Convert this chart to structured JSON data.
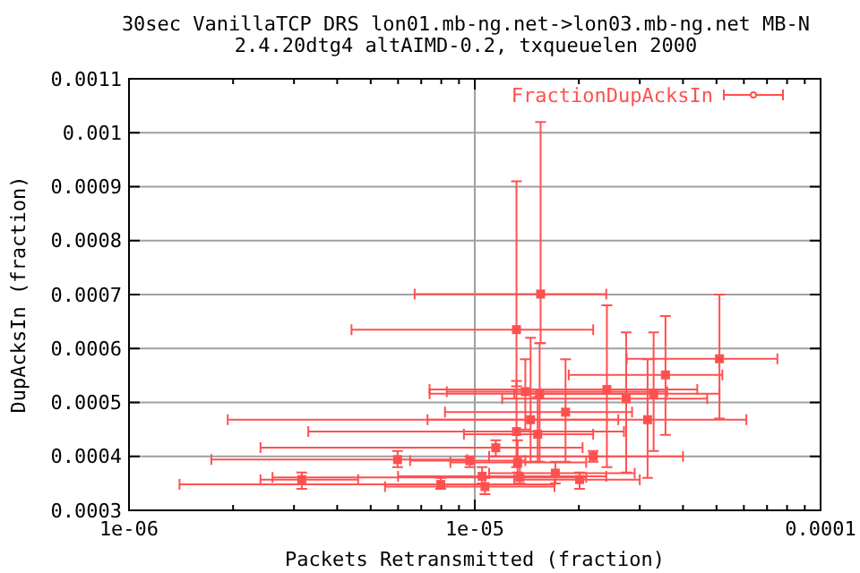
{
  "chart_data": {
    "type": "scatter",
    "title": "30sec VanillaTCP DRS lon01.mb-ng.net->lon03.mb-ng.net MB-N",
    "subtitle": "2.4.20dtg4 altAIMD-0.2, txqueuelen 2000",
    "xlabel": "Packets Retransmitted (fraction)",
    "ylabel": "DupAcksIn (fraction)",
    "log": "x",
    "grid": true,
    "legend": "top right",
    "marker": "square",
    "xlim": [
      1e-06,
      0.0001
    ],
    "xticks": [
      {
        "value": 1e-06,
        "label": "1e-06"
      },
      {
        "value": 1e-05,
        "label": "1e-05"
      },
      {
        "value": 0.0001,
        "label": "0.0001"
      }
    ],
    "ylim": [
      0.0003,
      0.0011
    ],
    "yticks": [
      0.0003,
      0.0004,
      0.0005,
      0.0006,
      0.0007,
      0.0008,
      0.0009,
      0.001,
      0.0011
    ],
    "series": [
      {
        "name": "FractionDupAcksIn",
        "color": "#ff5050",
        "x": [
          1.55e-05,
          1.32e-05,
          5.1e-05,
          3.56e-05,
          1.4e-05,
          2.41e-05,
          1.54e-05,
          3.29e-05,
          2.74e-05,
          1.83e-05,
          1.45e-05,
          3.16e-05,
          1.32e-05,
          1.52e-05,
          1.15e-05,
          2.2e-05,
          9.68e-06,
          1.33e-05,
          1.71e-05,
          1.05e-05,
          1.35e-05,
          2.01e-05,
          7.97e-06,
          1.07e-05,
          5.98e-06,
          3.16e-06
        ],
        "values": [
          0.000701,
          0.000635,
          0.000581,
          0.000551,
          0.00052,
          0.000524,
          0.000516,
          0.000516,
          0.000507,
          0.000482,
          0.000468,
          0.000468,
          0.000446,
          0.000441,
          0.000416,
          0.0004,
          0.000392,
          0.000389,
          0.000369,
          0.000363,
          0.000361,
          0.000357,
          0.000348,
          0.000344,
          0.000394,
          0.000357
        ],
        "xerrors": [
          [
            6.7e-06,
            2.4e-05
          ],
          [
            4.4e-06,
            2.2e-05
          ],
          [
            2.75e-05,
            7.5e-05
          ],
          [
            1.87e-05,
            5.2e-05
          ],
          [
            8.3e-06,
            3.6e-05
          ],
          [
            7.4e-06,
            4.4e-05
          ],
          [
            7.4e-06,
            3.3e-05
          ],
          [
            1.3e-05,
            5.1e-05
          ],
          [
            1.2e-05,
            4.7e-05
          ],
          [
            8.2e-06,
            2.85e-05
          ],
          [
            7.3e-06,
            2.6e-05
          ],
          [
            1.93e-06,
            6.1e-05
          ],
          [
            3.3e-06,
            2.7e-05
          ],
          [
            9.3e-06,
            2.2e-05
          ],
          [
            2.4e-06,
            2.05e-05
          ],
          [
            1.1e-05,
            4e-05
          ],
          [
            6.5e-06,
            1.4e-05
          ],
          [
            8.5e-06,
            2.1e-05
          ],
          [
            1.1e-05,
            2.9e-05
          ],
          [
            6e-06,
            2.4e-05
          ],
          [
            2.6e-06,
            2.1e-05
          ],
          [
            1.3e-05,
            3e-05
          ],
          [
            1.4e-06,
            1.7e-05
          ],
          [
            5.5e-06,
            1.7e-05
          ],
          [
            1.73e-06,
            9.5e-06
          ],
          [
            2.4e-06,
            4.6e-06
          ]
        ],
        "errors": [
          [
            0.00061,
            0.00102
          ],
          [
            0.00053,
            0.00091
          ],
          [
            0.00047,
            0.0007
          ],
          [
            0.00044,
            0.00066
          ],
          [
            0.00045,
            0.00058
          ],
          [
            0.00038,
            0.00068
          ],
          [
            0.00039,
            0.00061
          ],
          [
            0.00041,
            0.00063
          ],
          [
            0.00037,
            0.00063
          ],
          [
            0.00039,
            0.00058
          ],
          [
            0.00039,
            0.00062
          ],
          [
            0.00036,
            0.00058
          ],
          [
            0.00038,
            0.00054
          ],
          [
            0.00039,
            0.00051
          ],
          [
            0.0004,
            0.00043
          ],
          [
            0.00039,
            0.00041
          ],
          [
            0.00038,
            0.0004
          ],
          [
            0.00037,
            0.00043
          ],
          [
            0.00035,
            0.00039
          ],
          [
            0.00035,
            0.00038
          ],
          [
            0.00035,
            0.0004
          ],
          [
            0.00034,
            0.00037
          ],
          [
            0.00034,
            0.00036
          ],
          [
            0.00033,
            0.00036
          ],
          [
            0.00038,
            0.00041
          ],
          [
            0.00034,
            0.00037
          ]
        ]
      }
    ]
  }
}
